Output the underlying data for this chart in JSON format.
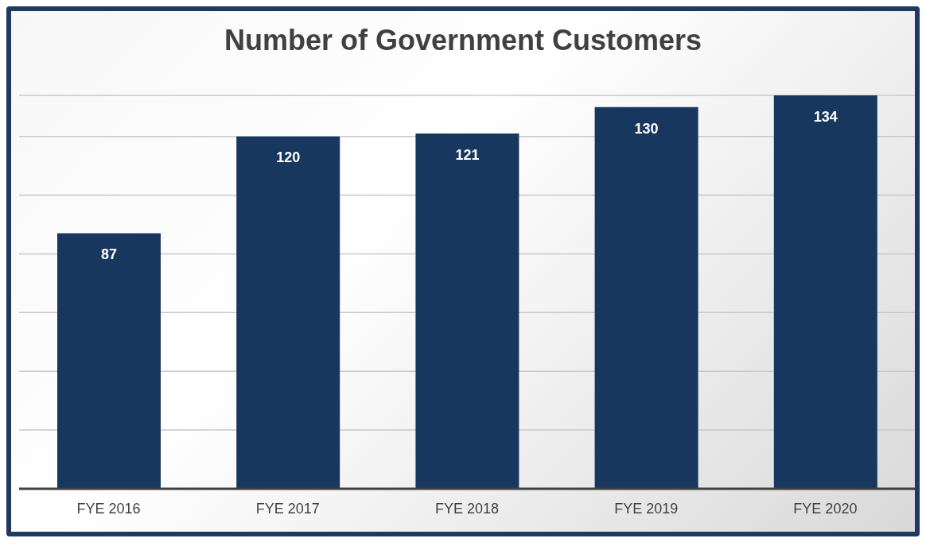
{
  "chart_data": {
    "type": "bar",
    "title": "Number of Government Customers",
    "categories": [
      "FYE 2016",
      "FYE 2017",
      "FYE 2018",
      "FYE 2019",
      "FYE 2020"
    ],
    "values": [
      87,
      120,
      121,
      130,
      134
    ],
    "color": "#17375e",
    "grid": "y",
    "tick_labels": "x",
    "data_labels": true
  }
}
